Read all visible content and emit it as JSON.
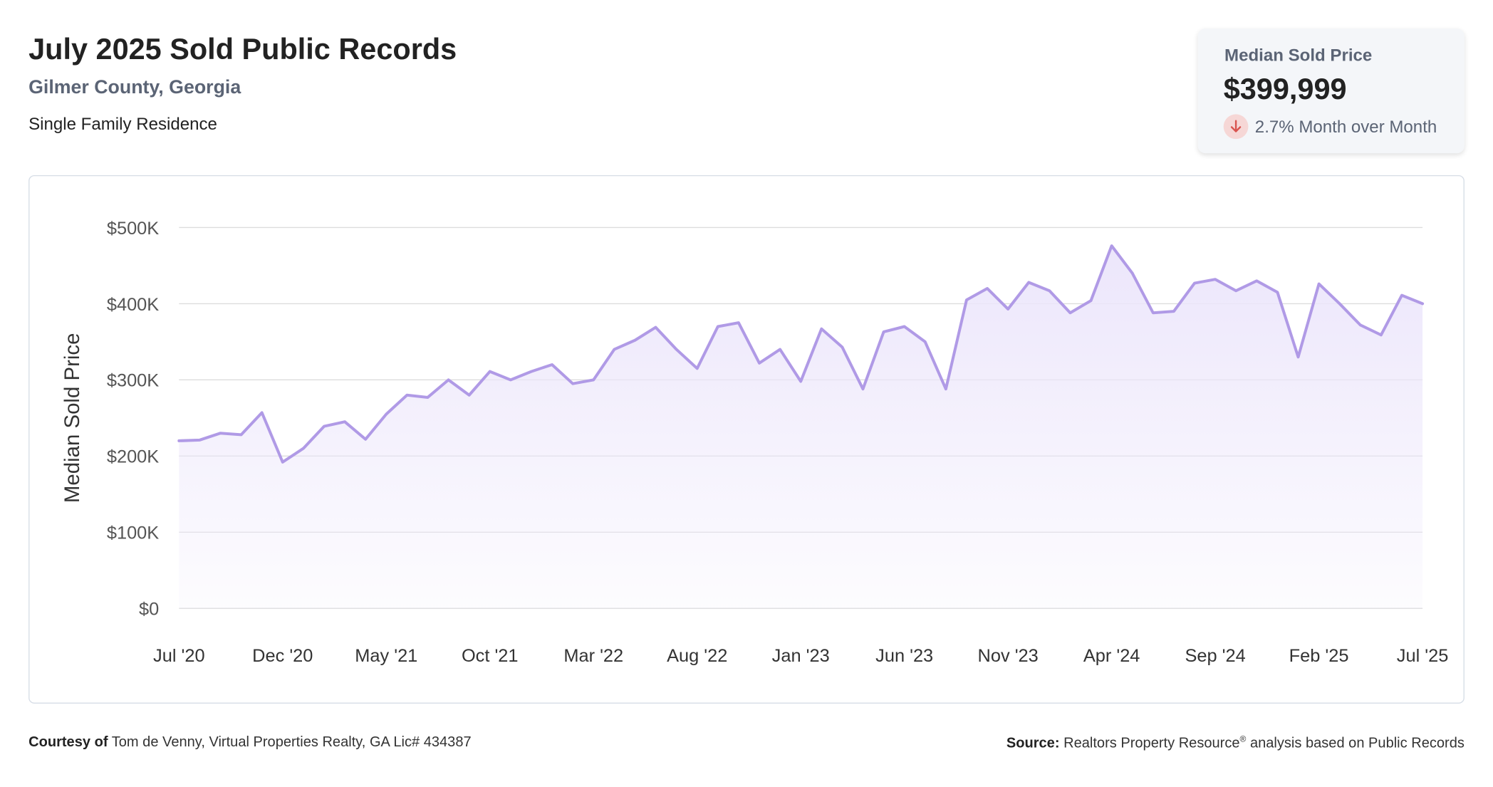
{
  "header": {
    "title": "July 2025 Sold Public Records",
    "location": "Gilmer County, Georgia",
    "property_type": "Single Family Residence"
  },
  "summary_card": {
    "label": "Median Sold Price",
    "value": "$399,999",
    "change_text": "2.7% Month over Month",
    "direction": "down",
    "icon": "arrow-down-icon"
  },
  "footer": {
    "courtesy_label": "Courtesy of",
    "courtesy_text": "Tom de Venny, Virtual Properties Realty, GA Lic# 434387",
    "source_label": "Source:",
    "source_text_1": "Realtors Property Resource",
    "source_reg": "®",
    "source_text_2": "analysis based on Public Records"
  },
  "colors": {
    "line": "#b09ae6",
    "fill_top": "#ece6fb",
    "grid": "#dddddd",
    "down_badge": "#f6d7d6",
    "down_arrow": "#d9534f"
  },
  "chart_data": {
    "type": "area",
    "ylabel": "Median Sold Price",
    "ylim": [
      0,
      500000
    ],
    "yticks": [
      0,
      100000,
      200000,
      300000,
      400000,
      500000
    ],
    "ytick_labels": [
      "$0",
      "$100K",
      "$200K",
      "$300K",
      "$400K",
      "$500K"
    ],
    "xtick_labels": [
      "Jul '20",
      "Dec '20",
      "May '21",
      "Oct '21",
      "Mar '22",
      "Aug '22",
      "Jan '23",
      "Jun '23",
      "Nov '23",
      "Apr '24",
      "Sep '24",
      "Feb '25",
      "Jul '25"
    ],
    "xtick_every": 5,
    "grid": true,
    "x": [
      "2020-07",
      "2020-08",
      "2020-09",
      "2020-10",
      "2020-11",
      "2020-12",
      "2021-01",
      "2021-02",
      "2021-03",
      "2021-04",
      "2021-05",
      "2021-06",
      "2021-07",
      "2021-08",
      "2021-09",
      "2021-10",
      "2021-11",
      "2021-12",
      "2022-01",
      "2022-02",
      "2022-03",
      "2022-04",
      "2022-05",
      "2022-06",
      "2022-07",
      "2022-08",
      "2022-09",
      "2022-10",
      "2022-11",
      "2022-12",
      "2023-01",
      "2023-02",
      "2023-03",
      "2023-04",
      "2023-05",
      "2023-06",
      "2023-07",
      "2023-08",
      "2023-09",
      "2023-10",
      "2023-11",
      "2023-12",
      "2024-01",
      "2024-02",
      "2024-03",
      "2024-04",
      "2024-05",
      "2024-06",
      "2024-07",
      "2024-08",
      "2024-09",
      "2024-10",
      "2024-11",
      "2024-12",
      "2025-01",
      "2025-02",
      "2025-03",
      "2025-04",
      "2025-05",
      "2025-06",
      "2025-07"
    ],
    "series": [
      {
        "values": [
          220000,
          221000,
          230000,
          228000,
          257000,
          192000,
          210000,
          239000,
          245000,
          222000,
          255000,
          280000,
          277000,
          300000,
          280000,
          311000,
          300000,
          311000,
          320000,
          295000,
          300000,
          340000,
          352000,
          369000,
          340000,
          315000,
          370000,
          375000,
          322000,
          340000,
          298000,
          367000,
          343000,
          288000,
          363000,
          370000,
          350000,
          288000,
          405000,
          420000,
          393000,
          428000,
          417000,
          388000,
          404000,
          476000,
          440000,
          388000,
          390000,
          427000,
          432000,
          417000,
          430000,
          415000,
          330000,
          426000,
          400000,
          372000,
          359000,
          411000,
          400000
        ]
      }
    ]
  }
}
